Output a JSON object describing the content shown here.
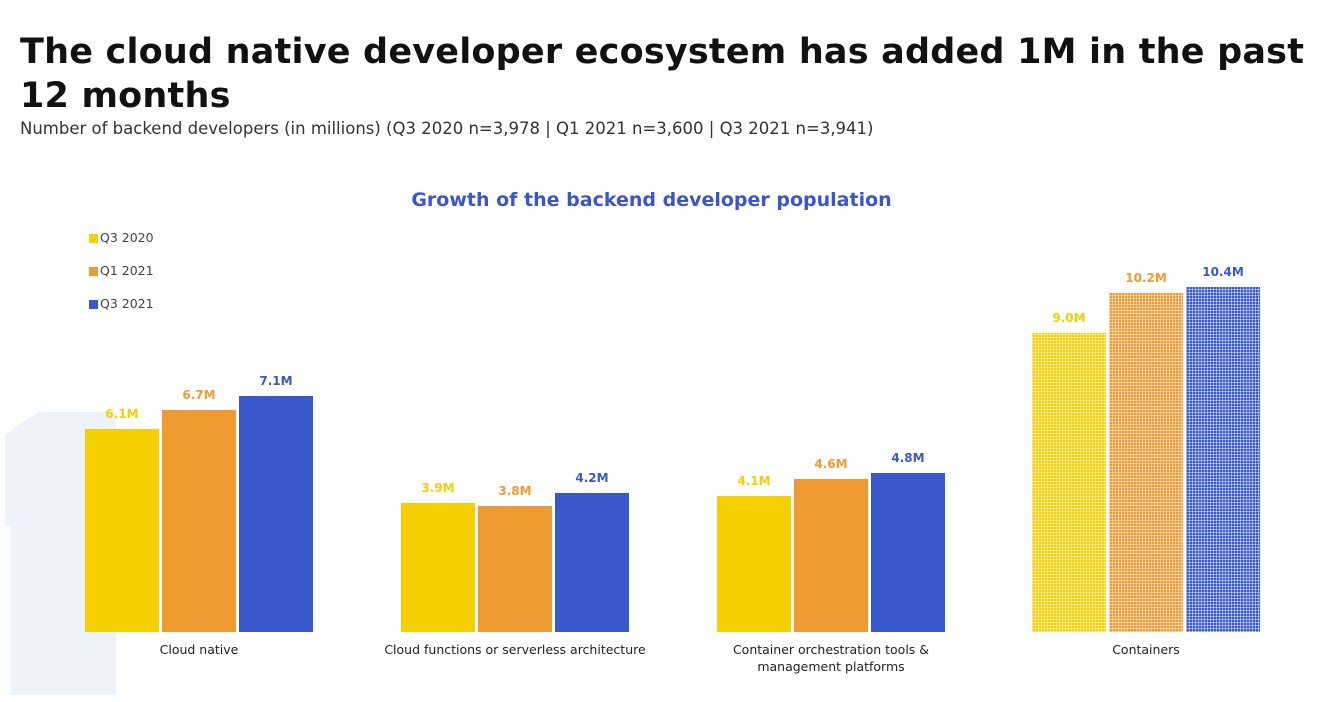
{
  "header": {
    "title": "The cloud native developer ecosystem has added 1M in the past 12 months",
    "subtitle": "Number of backend developers (in millions) (Q3 2020 n=3,978 | Q1 2021 n=3,600 | Q3 2021 n=3,941)"
  },
  "chart_data": {
    "type": "bar",
    "title": "Growth of the backend developer population",
    "categories": [
      "Cloud native",
      "Cloud functions or serverless architecture",
      "Container orchestration tools & management platforms",
      "Containers"
    ],
    "series": [
      {
        "name": "Q3 2020",
        "color": "#F5CF00",
        "values": [
          6.1,
          3.9,
          4.1,
          9.0
        ],
        "labels": [
          "6.1M",
          "3.9M",
          "4.1M",
          "9.0M"
        ]
      },
      {
        "name": "Q1 2021",
        "color": "#F09A32",
        "values": [
          6.7,
          3.8,
          4.6,
          10.2
        ],
        "labels": [
          "6.7M",
          "3.8M",
          "4.6M",
          "10.2M"
        ]
      },
      {
        "name": "Q3 2021",
        "color": "#3858CC",
        "values": [
          7.1,
          4.2,
          4.8,
          10.4
        ],
        "labels": [
          "7.1M",
          "4.2M",
          "4.8M",
          "10.4M"
        ]
      }
    ],
    "unit": "M",
    "legend_position": "top-left",
    "grid": false,
    "ylim": [
      0,
      10.4
    ],
    "hatched_category": "Containers"
  }
}
